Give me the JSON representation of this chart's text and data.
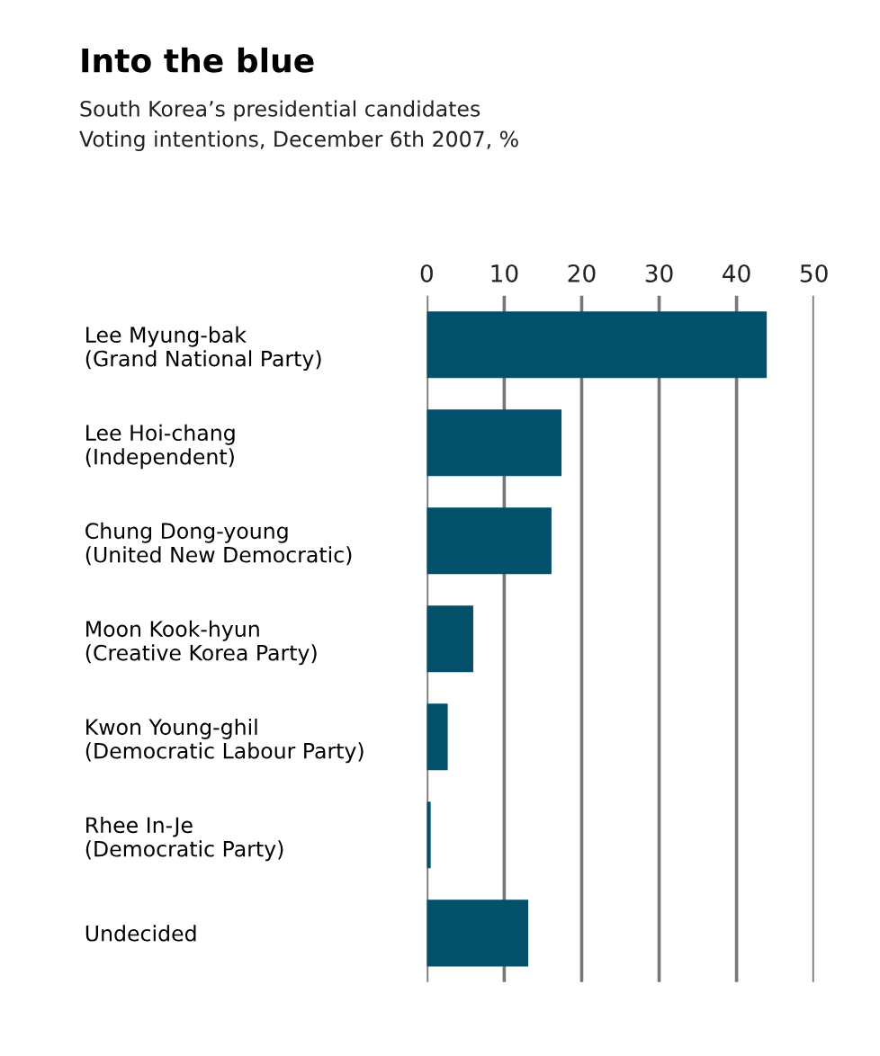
{
  "chart_data": {
    "type": "bar",
    "orientation": "horizontal",
    "title": "Into the blue",
    "subtitle": "South Korea’s presidential candidates\nVoting intentions, December 6th 2007, %",
    "categories": [
      "Lee Myung-bak\n(Grand National Party)",
      "Lee Hoi-chang\n(Independent)",
      "Chung Dong-young\n(United New Democratic)",
      "Moon Kook-hyun\n(Creative Korea Party)",
      "Kwon Young-ghil\n(Democratic Labour Party)",
      "Rhee In-Je\n(Democratic Party)",
      "Undecided"
    ],
    "values": [
      43.9,
      17.4,
      16.1,
      6.0,
      2.7,
      0.5,
      13.1
    ],
    "color": "#03506b",
    "xlim": [
      0,
      50
    ],
    "xticks": [
      0,
      10,
      20,
      30,
      40,
      50
    ],
    "grid": "x",
    "legend": false
  }
}
